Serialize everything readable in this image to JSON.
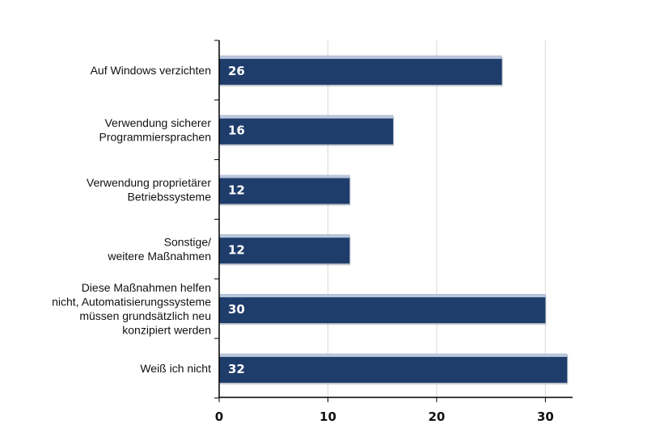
{
  "chart_data": {
    "type": "bar",
    "orientation": "horizontal",
    "title": "",
    "xlabel": "",
    "ylabel": "",
    "xlim": [
      0,
      32.5
    ],
    "x_ticks": [
      0,
      10,
      20,
      30
    ],
    "grid": true,
    "legend": "none",
    "bar_color": "#1f3d6b",
    "bar_highlight": "#b9c6dc",
    "categories": [
      [
        "Auf Windows verzichten"
      ],
      [
        "Verwendung sicherer",
        "Programmiersprachen"
      ],
      [
        "Verwendung proprietärer",
        "Betriebssysteme"
      ],
      [
        "Sonstige/",
        "weitere Maßnahmen"
      ],
      [
        "Diese Maßnahmen helfen",
        "nicht, Automatisierungssysteme",
        "müssen grundsätzlich neu",
        "konzipiert werden"
      ],
      [
        "Weiß ich nicht"
      ]
    ],
    "values": [
      26,
      16,
      12,
      12,
      30,
      32
    ]
  }
}
